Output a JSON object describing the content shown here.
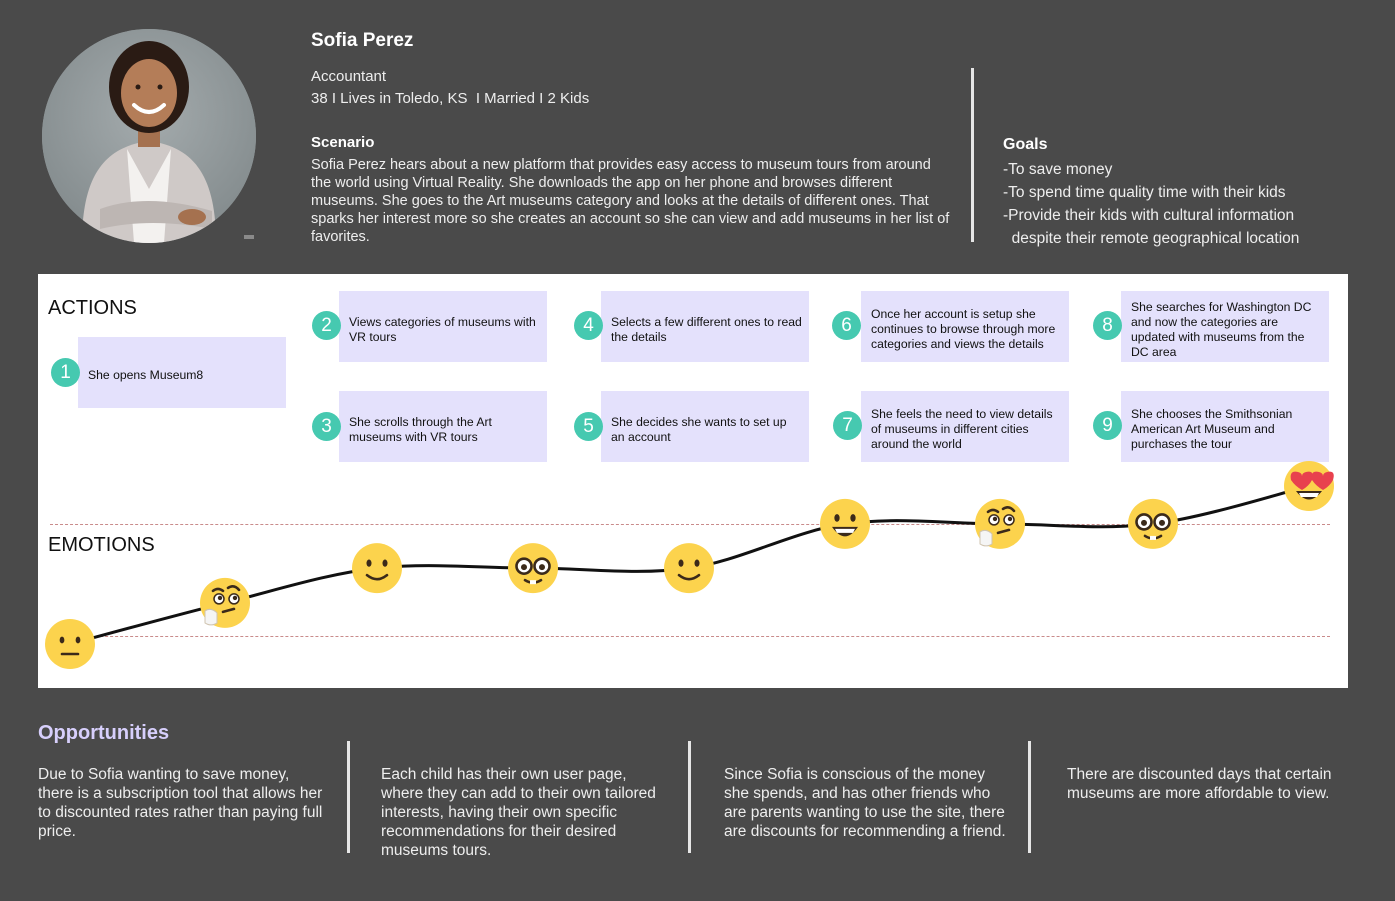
{
  "persona": {
    "name": "Sofia Perez",
    "occupation": "Accountant",
    "demographics": "38 I Lives in Toledo, KS  I Married I 2 Kids",
    "scenario_heading": "Scenario",
    "scenario_text": "Sofia Perez hears about a new platform that provides easy access to museum tours from around the world using Virtual Reality. She downloads the app on her phone and browses different museums. She goes to the Art museums category and looks at the details of different ones. That sparks her interest more so she creates an account so she can view and add museums in her list of favorites."
  },
  "goals": {
    "heading": "Goals",
    "items": [
      "-To save money",
      "-To spend time quality time with their kids",
      "-Provide their kids with cultural information",
      "  despite their remote geographical location"
    ]
  },
  "journey": {
    "actions_label": "ACTIONS",
    "emotions_label": "EMOTIONS",
    "steps": [
      {
        "number": "1",
        "text": "She opens Museum8"
      },
      {
        "number": "2",
        "text": "Views categories of museums with VR tours"
      },
      {
        "number": "3",
        "text": "She scrolls through the Art museums with VR tours"
      },
      {
        "number": "4",
        "text": "Selects a few different ones to read the details"
      },
      {
        "number": "5",
        "text": "She decides she wants to set up an account"
      },
      {
        "number": "6",
        "text": "Once her account is setup she continues to browse through more categories and views the details"
      },
      {
        "number": "7",
        "text": "She feels the need to view details of museums in different cities around the world"
      },
      {
        "number": "8",
        "text": "She searches for Washington DC and now the categories are updated with museums from the DC area"
      },
      {
        "number": "9",
        "text": "She chooses the Smithsonian American Art Museum and purchases the tour"
      }
    ],
    "emotions": [
      {
        "step": 1,
        "emoji": "neutral-face-icon",
        "level": 0
      },
      {
        "step": 2,
        "emoji": "thinking-face-icon",
        "level": 0.26
      },
      {
        "step": 3,
        "emoji": "slightly-smiling-face-icon",
        "level": 0.48
      },
      {
        "step": 4,
        "emoji": "nerd-face-icon",
        "level": 0.48
      },
      {
        "step": 5,
        "emoji": "slightly-smiling-face-icon",
        "level": 0.48
      },
      {
        "step": 6,
        "emoji": "grinning-face-icon",
        "level": 0.76
      },
      {
        "step": 7,
        "emoji": "thinking-face-icon",
        "level": 0.76
      },
      {
        "step": 8,
        "emoji": "nerd-face-icon",
        "level": 0.76
      },
      {
        "step": 9,
        "emoji": "heart-eyes-face-icon",
        "level": 1
      }
    ]
  },
  "opportunities": {
    "heading": "Opportunities",
    "items": [
      "Due to Sofia wanting to save money, there is a subscription tool that allows her to discounted rates rather than paying full price.",
      "Each child has their own user page, where they can add to their own tailored interests, having their own specific recommendations for their desired museums tours.",
      "Since Sofia is conscious of the money she spends, and has other friends who are parents wanting to use the site, there are discounts for recommending a friend.",
      "There are discounted days that certain museums are more affordable to view."
    ]
  },
  "colors": {
    "background": "#4a4a4a",
    "card": "#e4e1fc",
    "step_badge": "#46c9b0",
    "opportunities_heading": "#d7cffc",
    "emoji_yellow": "#fcd34d"
  }
}
